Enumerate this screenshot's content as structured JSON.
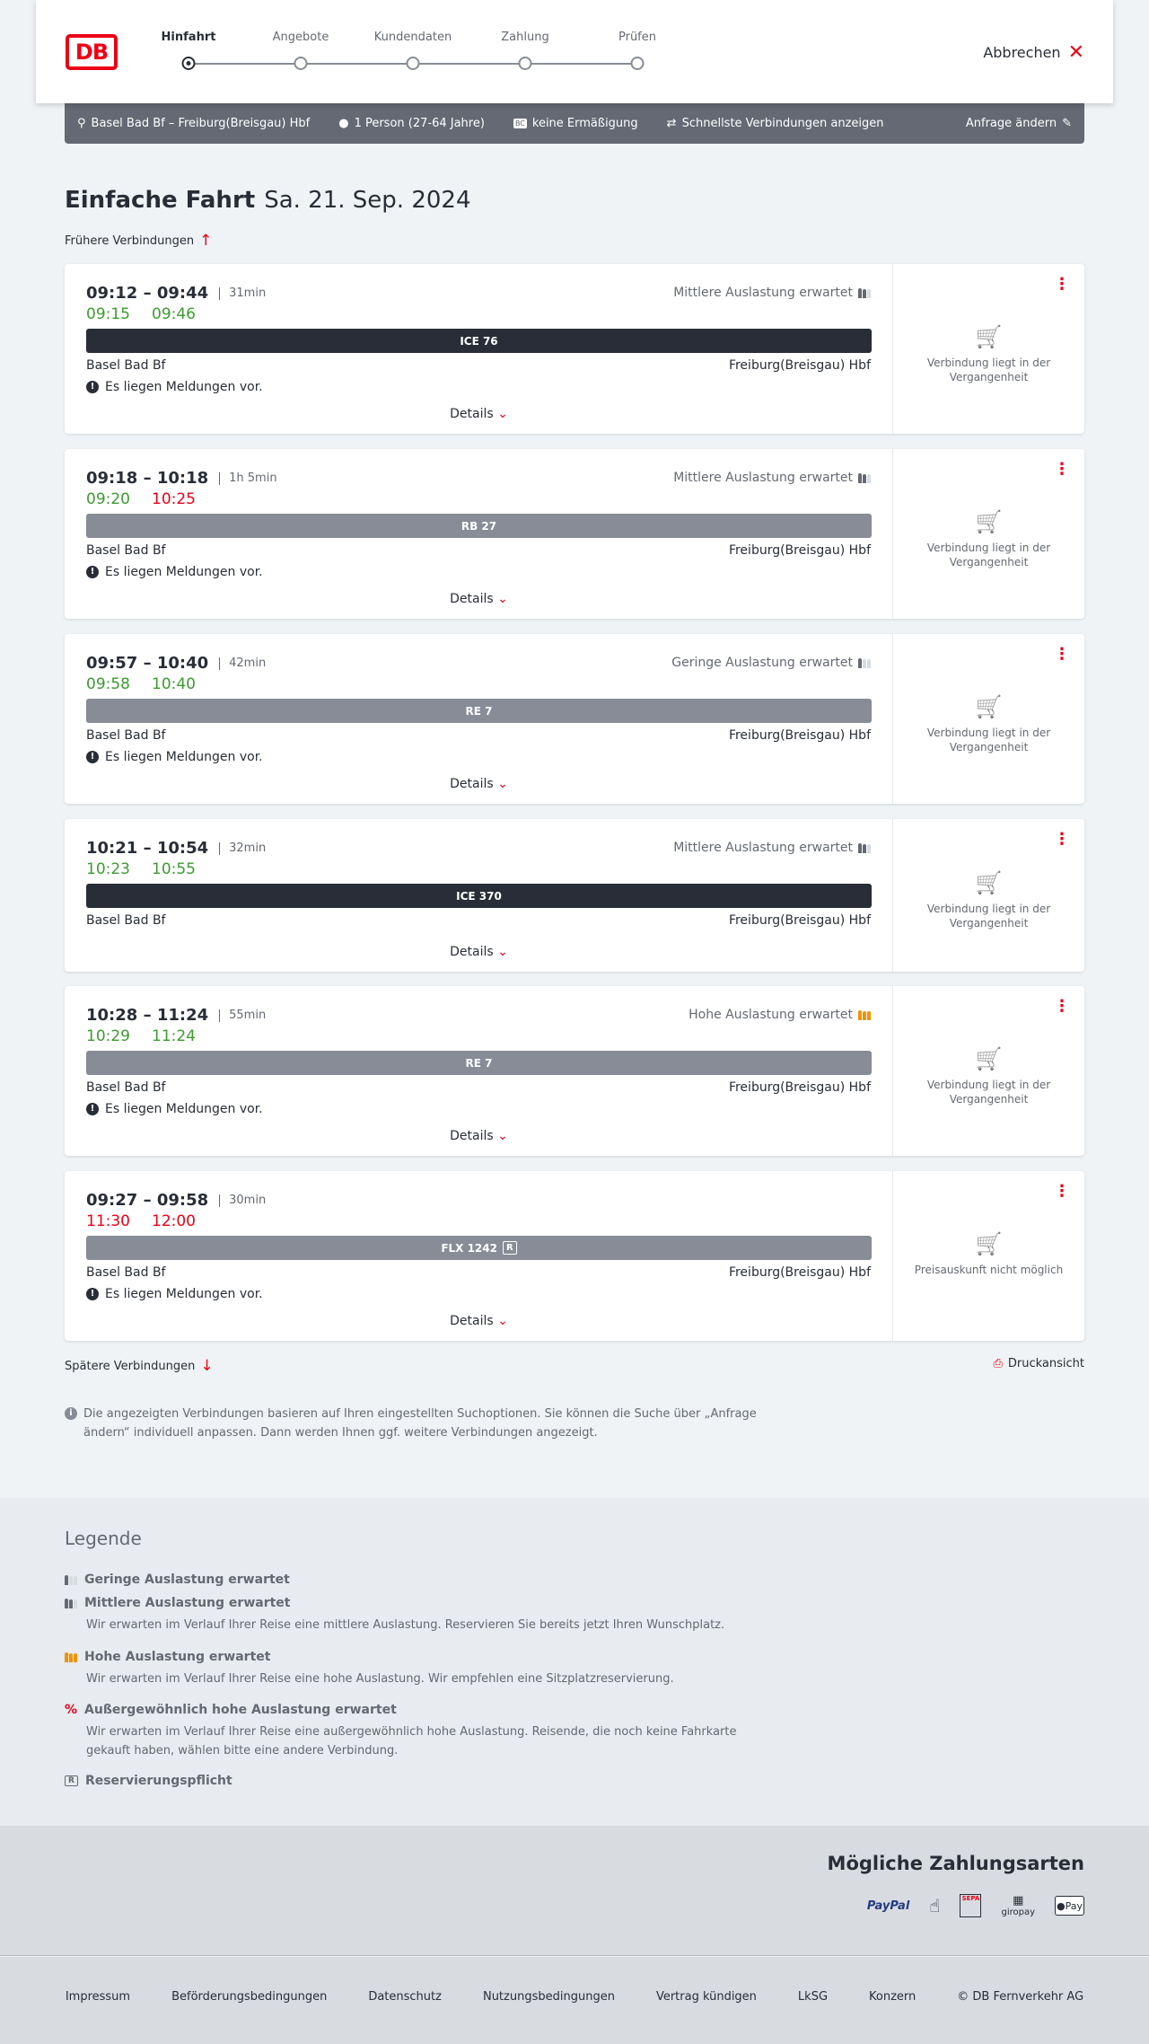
{
  "header": {
    "logo": "DB",
    "steps": [
      "Hinfahrt",
      "Angebote",
      "Kundendaten",
      "Zahlung",
      "Prüfen"
    ],
    "active_step": 0,
    "cancel": "Abbrechen"
  },
  "query": {
    "route": "Basel Bad Bf – Freiburg(Breisgau) Hbf",
    "passengers": "1 Person (27-64 Jahre)",
    "discount": "keine Ermäßigung",
    "fastest": "Schnellste Verbindungen anzeigen",
    "change": "Anfrage ändern"
  },
  "page": {
    "title": "Einfache Fahrt",
    "date": "Sa. 21. Sep. 2024",
    "earlier": "Frühere Verbindungen",
    "later": "Spätere Verbindungen",
    "print": "Druckansicht",
    "info": "Die angezeigten Verbindungen basieren auf Ihren eingestellten Suchoptionen. Sie können die Suche über „Anfrage ändern“ individuell anpassen. Dann werden Ihnen ggf. weitere Verbindungen angezeigt."
  },
  "colors": {
    "accent": "#ec0016",
    "on_time": "#3c9b2f",
    "delayed": "#ec0016",
    "train_ice": "#282d37",
    "train_other": "#878c96",
    "high_load": "#f39200"
  },
  "connections": [
    {
      "times": "09:12 – 09:44",
      "duration": "31min",
      "rt_dep": "09:15",
      "rt_dep_status": "on_time",
      "rt_arr": "09:46",
      "rt_arr_status": "on_time",
      "load": "Mittlere Auslastung erwartet",
      "load_level": 2,
      "train": "ICE 76",
      "train_type": "ice",
      "from": "Basel Bad Bf",
      "to": "Freiburg(Breisgau) Hbf",
      "message": "Es liegen Meldungen vor.",
      "details": "Details",
      "price_text": "Verbindung liegt in der Vergangenheit"
    },
    {
      "times": "09:18 – 10:18",
      "duration": "1h 5min",
      "rt_dep": "09:20",
      "rt_dep_status": "on_time",
      "rt_arr": "10:25",
      "rt_arr_status": "delayed",
      "load": "Mittlere Auslastung erwartet",
      "load_level": 2,
      "train": "RB 27",
      "train_type": "other",
      "from": "Basel Bad Bf",
      "to": "Freiburg(Breisgau) Hbf",
      "message": "Es liegen Meldungen vor.",
      "details": "Details",
      "price_text": "Verbindung liegt in der Vergangenheit"
    },
    {
      "times": "09:57 – 10:40",
      "duration": "42min",
      "rt_dep": "09:58",
      "rt_dep_status": "on_time",
      "rt_arr": "10:40",
      "rt_arr_status": "on_time",
      "load": "Geringe Auslastung erwartet",
      "load_level": 1,
      "train": "RE 7",
      "train_type": "other",
      "from": "Basel Bad Bf",
      "to": "Freiburg(Breisgau) Hbf",
      "message": "Es liegen Meldungen vor.",
      "details": "Details",
      "price_text": "Verbindung liegt in der Vergangenheit"
    },
    {
      "times": "10:21 – 10:54",
      "duration": "32min",
      "rt_dep": "10:23",
      "rt_dep_status": "on_time",
      "rt_arr": "10:55",
      "rt_arr_status": "on_time",
      "load": "Mittlere Auslastung erwartet",
      "load_level": 2,
      "train": "ICE 370",
      "train_type": "ice",
      "from": "Basel Bad Bf",
      "to": "Freiburg(Breisgau) Hbf",
      "details": "Details",
      "price_text": "Verbindung liegt in der Vergangenheit"
    },
    {
      "times": "10:28 – 11:24",
      "duration": "55min",
      "rt_dep": "10:29",
      "rt_dep_status": "on_time",
      "rt_arr": "11:24",
      "rt_arr_status": "on_time",
      "load": "Hohe Auslastung erwartet",
      "load_level": 3,
      "train": "RE 7",
      "train_type": "other",
      "from": "Basel Bad Bf",
      "to": "Freiburg(Breisgau) Hbf",
      "message": "Es liegen Meldungen vor.",
      "details": "Details",
      "price_text": "Verbindung liegt in der Vergangenheit"
    },
    {
      "times": "09:27 – 09:58",
      "duration": "30min",
      "rt_dep": "11:30",
      "rt_dep_status": "delayed",
      "rt_arr": "12:00",
      "rt_arr_status": "delayed",
      "train": "FLX 1242",
      "train_badge": "R",
      "train_type": "other",
      "from": "Basel Bad Bf",
      "to": "Freiburg(Breisgau) Hbf",
      "message": "Es liegen Meldungen vor.",
      "details": "Details",
      "price_text": "Preisauskunft nicht möglich"
    }
  ],
  "legend": {
    "title": "Legende",
    "items": [
      {
        "title": "Geringe Auslastung erwartet",
        "icon": "load-low"
      },
      {
        "title": "Mittlere Auslastung erwartet",
        "text": "Wir erwarten im Verlauf Ihrer Reise eine mittlere Auslastung. Reservieren Sie bereits jetzt Ihren Wunschplatz.",
        "icon": "load-medium"
      },
      {
        "title": "Hohe Auslastung erwartet",
        "text": "Wir erwarten im Verlauf Ihrer Reise eine hohe Auslastung. Wir empfehlen eine Sitzplatzreservierung.",
        "icon": "load-high"
      },
      {
        "title": "Außergewöhnlich hohe Auslastung erwartet",
        "text": "Wir erwarten im Verlauf Ihrer Reise eine außergewöhnlich hohe Auslastung. Reisende, die noch keine Fahrkarte gekauft haben, wählen bitte eine andere Verbindung.",
        "icon": "load-exceptional"
      },
      {
        "title": "Reservierungspflicht",
        "icon": "reservation-r"
      }
    ]
  },
  "payment": {
    "title": "Mögliche Zahlungsarten",
    "methods": [
      "PayPal",
      "Kreditkarte",
      "SEPA",
      "giropay",
      "Pay"
    ]
  },
  "footer": {
    "links": [
      "Impressum",
      "Beförderungsbedingungen",
      "Datenschutz",
      "Nutzungsbedingungen",
      "Vertrag kündigen",
      "LkSG",
      "Konzern",
      "© DB Fernverkehr AG"
    ]
  }
}
